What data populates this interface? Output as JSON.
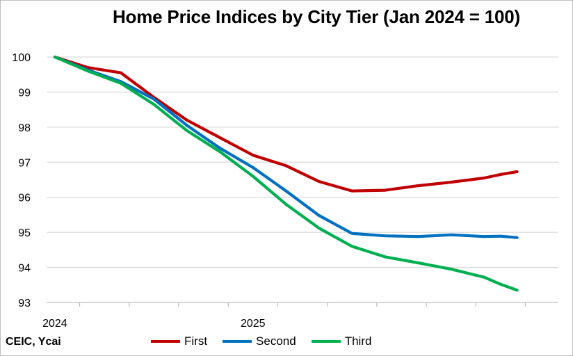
{
  "source_note": "CEIC, Ycai",
  "chart_data": {
    "type": "line",
    "title": "Home Price Indices by City Tier (Jan 2024 = 100)",
    "xlabel": "",
    "ylabel": "",
    "x": [
      "2024-01",
      "2024-02",
      "2024-03",
      "2024-04",
      "2024-05",
      "2024-06",
      "2024-07",
      "2024-08",
      "2024-09",
      "2024-10",
      "2024-11",
      "2024-12",
      "2025-01",
      "2025-02",
      "2025-03",
      "2025-04",
      "2025-05",
      "2025-06",
      "2025-07",
      "2025-08",
      "2025-09",
      "2025-10",
      "2025-11",
      "2025-12",
      "2026-01",
      "2026-02",
      "2026-03"
    ],
    "x_tick_labels": [
      {
        "x": "2024-01",
        "label": "2024"
      },
      {
        "x": "2025-01",
        "label": "2025"
      }
    ],
    "y_ticks": [
      93,
      94,
      95,
      96,
      97,
      98,
      99,
      100
    ],
    "ylim": [
      93,
      100
    ],
    "grid": true,
    "legend_position": "bottom",
    "series": [
      {
        "name": "First",
        "color": "#c00000",
        "values": [
          100,
          null,
          99.7,
          null,
          99.55,
          null,
          98.85,
          null,
          98.2,
          null,
          97.7,
          null,
          97.2,
          null,
          96.9,
          null,
          96.45,
          null,
          96.18,
          null,
          96.2,
          null,
          96.33,
          null,
          96.43,
          null,
          96.55
        ]
      },
      {
        "name": "Second",
        "color": "#0070c0",
        "values": [
          100,
          null,
          99.63,
          null,
          99.3,
          null,
          98.8,
          null,
          98.05,
          null,
          97.4,
          null,
          96.85,
          null,
          96.18,
          null,
          95.48,
          null,
          94.97,
          null,
          94.9,
          null,
          94.88,
          null,
          94.93,
          null,
          94.88
        ]
      },
      {
        "name": "Third",
        "color": "#00b050",
        "values": [
          100,
          null,
          99.6,
          null,
          99.25,
          null,
          98.65,
          null,
          97.9,
          null,
          97.3,
          null,
          96.6,
          null,
          95.8,
          null,
          95.12,
          null,
          94.6,
          null,
          94.3,
          null,
          94.13,
          null,
          93.95,
          null,
          93.72
        ]
      }
    ],
    "tail": {
      "x": [
        "2026-04",
        "2026-05",
        "2026-06"
      ],
      "First": [
        96.65,
        96.73,
        null
      ],
      "Second": [
        94.89,
        94.85,
        null
      ],
      "Third": [
        93.52,
        93.35,
        null
      ]
    }
  }
}
